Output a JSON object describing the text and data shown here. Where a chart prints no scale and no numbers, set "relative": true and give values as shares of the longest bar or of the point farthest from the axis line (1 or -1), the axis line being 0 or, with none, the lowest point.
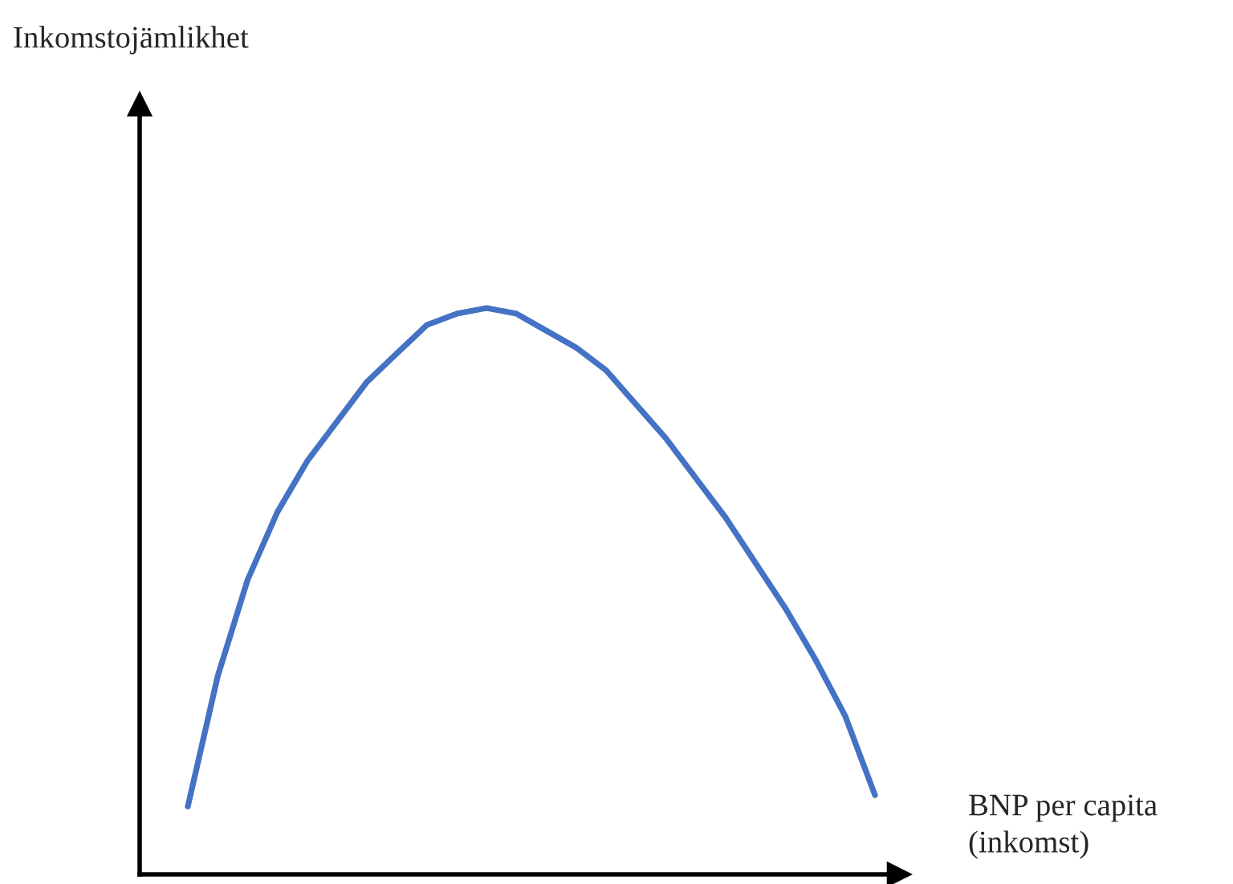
{
  "chart_data": {
    "type": "line",
    "relative": true,
    "xlabel": "BNP per capita\n(inkomst)",
    "annotations": [
      "Inkomstojämlikhet"
    ],
    "categories": [
      null,
      null,
      null,
      null,
      null,
      null,
      null,
      null,
      null,
      null,
      null,
      null,
      null,
      null,
      null,
      null,
      null,
      null,
      null,
      null,
      null,
      null,
      null,
      null
    ],
    "series": [
      {
        "color": "#4472c4",
        "values": [
          0.12,
          0.35,
          0.52,
          0.64,
          0.73,
          0.8,
          0.87,
          0.92,
          0.97,
          0.99,
          1.0,
          0.99,
          0.96,
          0.93,
          0.89,
          0.83,
          0.77,
          0.7,
          0.63,
          0.55,
          0.47,
          0.38,
          0.28,
          0.14
        ]
      }
    ],
    "marker": "none",
    "line_style": "solid"
  }
}
